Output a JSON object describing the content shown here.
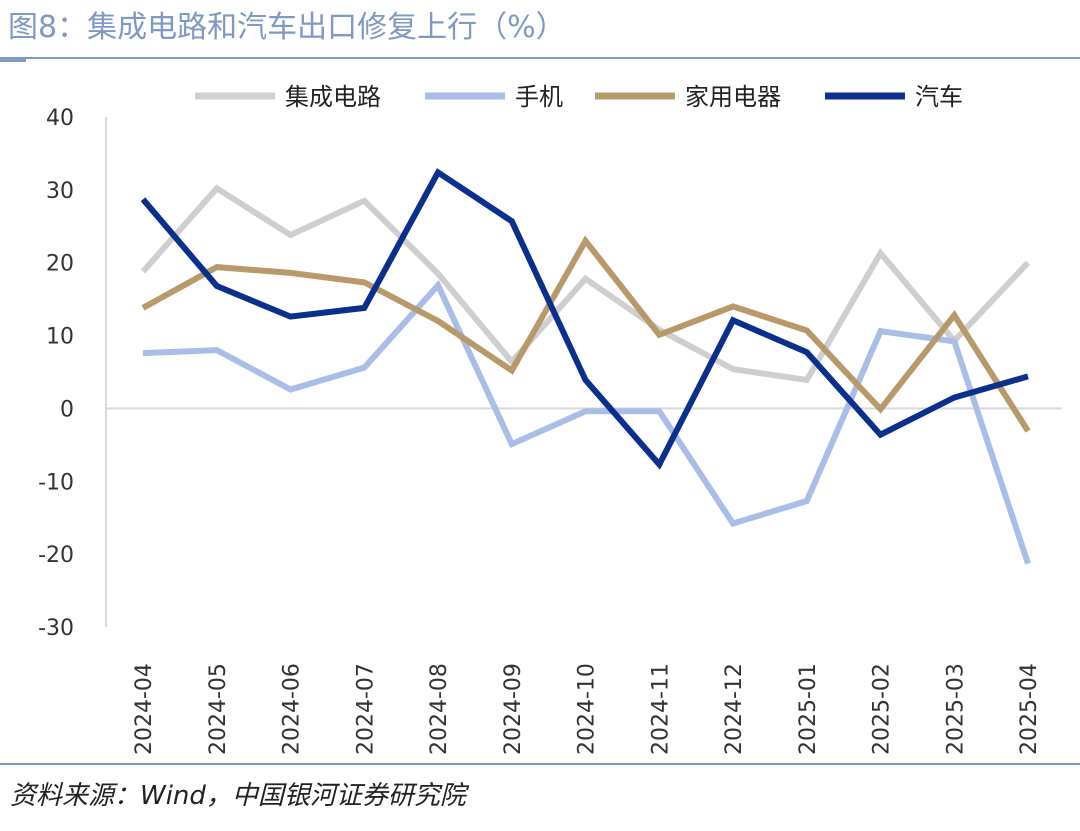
{
  "title": "图8：集成电路和汽车出口修复上行（%）",
  "source": "资料来源：Wind，中国银河证券研究院",
  "chart_data": {
    "type": "line",
    "categories": [
      "2024-04",
      "2024-05",
      "2024-06",
      "2024-07",
      "2024-08",
      "2024-09",
      "2024-10",
      "2024-11",
      "2024-12",
      "2025-01",
      "2025-02",
      "2025-03",
      "2025-04"
    ],
    "ylim": [
      -30,
      40
    ],
    "yticks": [
      40,
      30,
      20,
      10,
      0,
      -10,
      -20,
      -30
    ],
    "grid": false,
    "legend_position": "top",
    "series": [
      {
        "name": "集成电路",
        "color": "#cfcfcf",
        "values": [
          18.8,
          30.2,
          23.8,
          28.5,
          18.5,
          6.4,
          17.8,
          10.8,
          5.4,
          3.9,
          21.3,
          9.3,
          20.0
        ]
      },
      {
        "name": "手机",
        "color": "#a9bde6",
        "values": [
          7.6,
          8.0,
          2.6,
          5.6,
          16.9,
          -4.9,
          -0.4,
          -0.4,
          -15.8,
          -12.7,
          10.6,
          9.2,
          -21.3
        ]
      },
      {
        "name": "家用电器",
        "color": "#b8996a",
        "values": [
          13.8,
          19.4,
          18.6,
          17.3,
          12.0,
          5.2,
          23.0,
          10.1,
          14.0,
          10.7,
          -0.1,
          12.8,
          -3.1
        ]
      },
      {
        "name": "汽车",
        "color": "#0b2f8c",
        "values": [
          28.7,
          16.8,
          12.6,
          13.8,
          32.4,
          25.7,
          3.9,
          -7.7,
          12.1,
          7.7,
          -3.6,
          1.5,
          4.4
        ]
      }
    ]
  }
}
